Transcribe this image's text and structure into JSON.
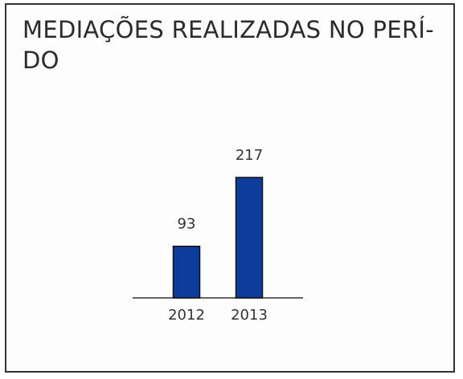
{
  "chart_data": {
    "type": "bar",
    "title": "MEDIAÇÕES REALIZADAS NO PERÍODO",
    "title_lines": [
      "MEDIAÇÕES REALIZADAS NO PERÍ-",
      "DO"
    ],
    "categories": [
      "2012",
      "2013"
    ],
    "values": [
      93,
      217
    ],
    "data_labels": [
      "93",
      "217"
    ],
    "ylim": [
      0,
      217
    ],
    "grid": false,
    "legend": "none",
    "bar_color": "#0d3d9c",
    "bar_outline": "#111111",
    "baseline_color": "#333333"
  }
}
